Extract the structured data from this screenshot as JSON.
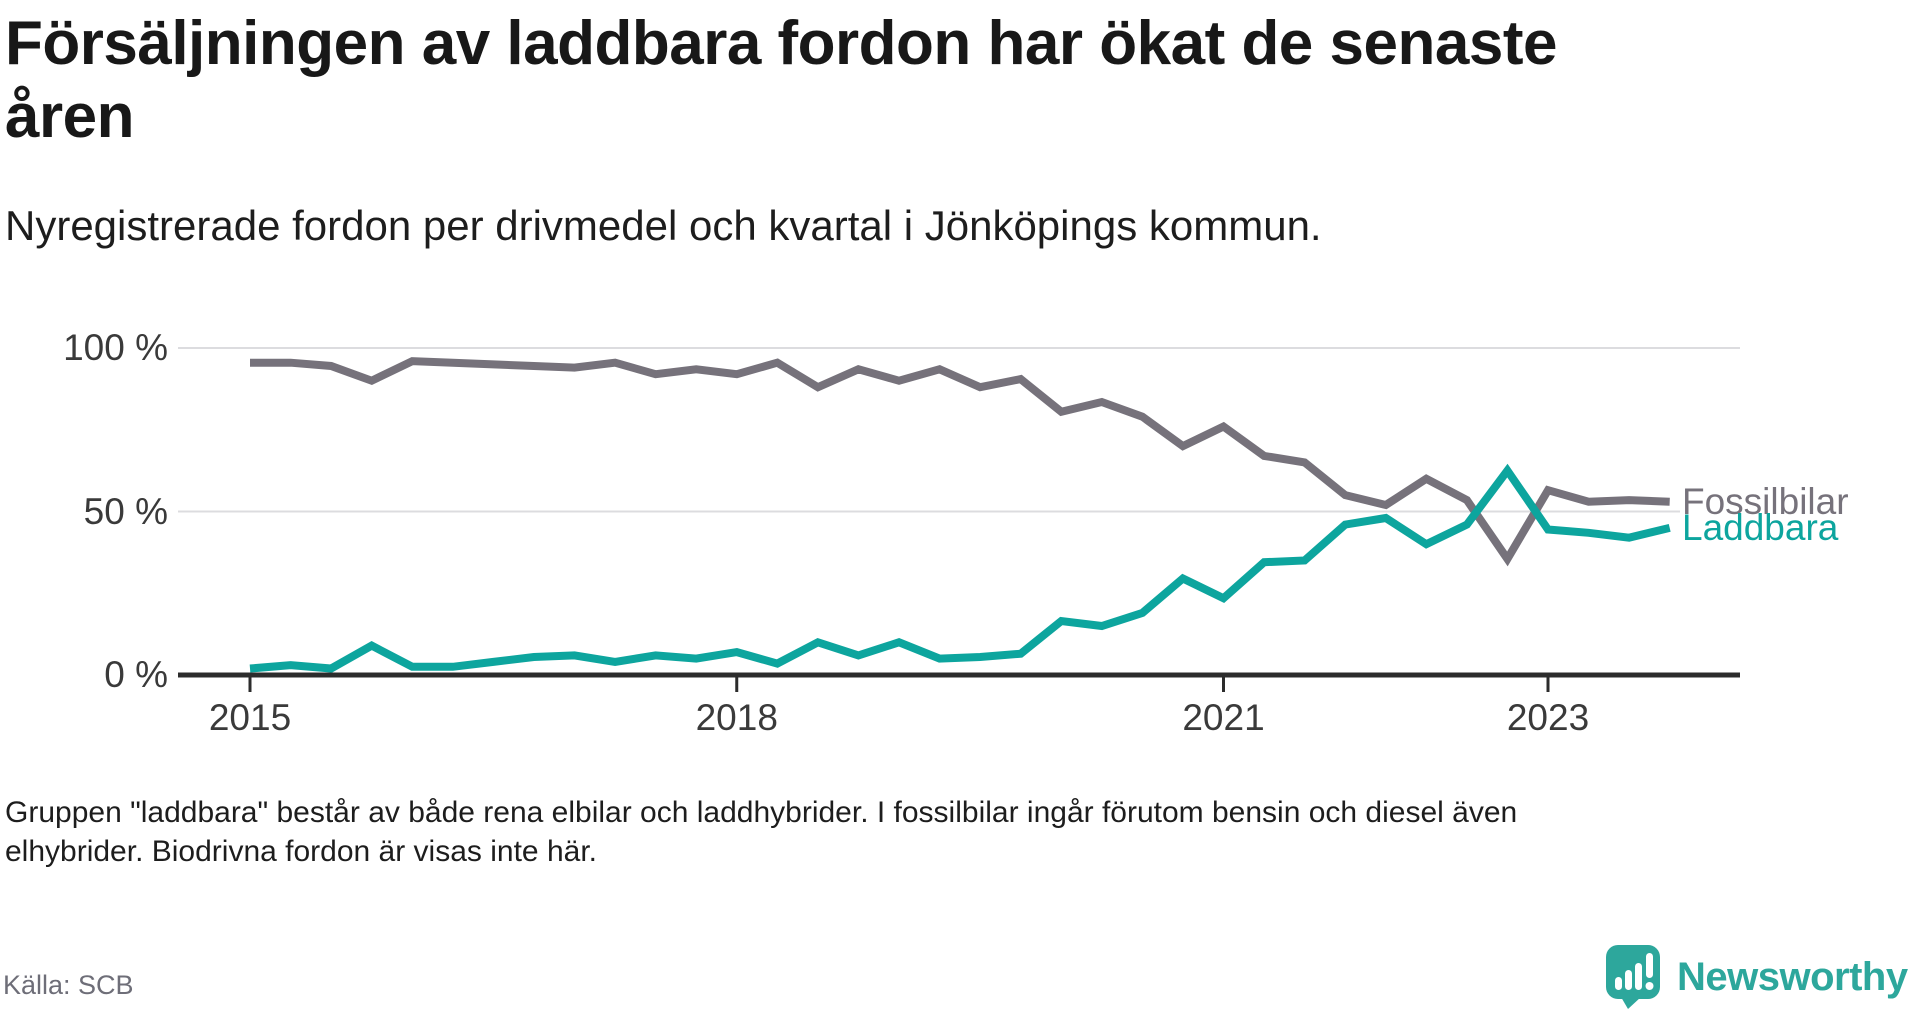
{
  "title_lines": [
    "Försäljningen av laddbara fordon har ökat de senaste",
    "åren"
  ],
  "title_full": "Försäljningen av laddbara fordon har ökat de senaste åren",
  "subtitle": "Nyregistrerade fordon per drivmedel och kvartal i Jönköpings kommun.",
  "footer": {
    "line1": "Gruppen \"laddbara\" består av både rena elbilar och laddhybrider. I fossilbilar ingår förutom bensin och diesel även",
    "line2": "elhybrider. Biodrivna fordon är visas inte här."
  },
  "source": "Källa: SCB",
  "branding": {
    "logo_text": "Newsworthy",
    "logo_color": "#2da79c",
    "logo_icon": "speech-bubble-bar-chart-icon"
  },
  "colors": {
    "fossil_line": "#76727B",
    "laddbara_line": "#0DA59E",
    "gridline": "#dcdcdf",
    "axis": "#2c2c2c",
    "tick_text": "#3a3a3a"
  },
  "chart_data": {
    "type": "line",
    "frequency": "quarterly",
    "x_start": "2015-Q1",
    "x_end": "2023-Q4",
    "ylim": [
      0,
      100
    ],
    "grid": "horizontal",
    "legend_position": "right-of-line-end",
    "yticks": [
      "100 %",
      "50 %",
      "0 %"
    ],
    "ytick_values": [
      100,
      50,
      0
    ],
    "xticks": [
      {
        "label": "2015",
        "quarter_index": 0
      },
      {
        "label": "2018",
        "quarter_index": 12
      },
      {
        "label": "2021",
        "quarter_index": 24
      },
      {
        "label": "2023",
        "quarter_index": 32
      }
    ],
    "categories": [
      "2015-Q1",
      "2015-Q2",
      "2015-Q3",
      "2015-Q4",
      "2016-Q1",
      "2016-Q2",
      "2016-Q3",
      "2016-Q4",
      "2017-Q1",
      "2017-Q2",
      "2017-Q3",
      "2017-Q4",
      "2018-Q1",
      "2018-Q2",
      "2018-Q3",
      "2018-Q4",
      "2019-Q1",
      "2019-Q2",
      "2019-Q3",
      "2019-Q4",
      "2020-Q1",
      "2020-Q2",
      "2020-Q3",
      "2020-Q4",
      "2021-Q1",
      "2021-Q2",
      "2021-Q3",
      "2021-Q4",
      "2022-Q1",
      "2022-Q2",
      "2022-Q3",
      "2022-Q4",
      "2023-Q1",
      "2023-Q2",
      "2023-Q3",
      "2023-Q4"
    ],
    "series": [
      {
        "name": "Fossilbilar",
        "color": "#76727B",
        "values": [
          95.5,
          95.5,
          94.5,
          90,
          96,
          95.5,
          95,
          94.5,
          94,
          95.5,
          92,
          93.5,
          92,
          95.5,
          88,
          93.5,
          90,
          93.5,
          88,
          90.5,
          80.5,
          83.5,
          79,
          70,
          76,
          67,
          65,
          55,
          52,
          60,
          53.5,
          35.5,
          56.5,
          53,
          53.5,
          53
        ]
      },
      {
        "name": "Laddbara",
        "color": "#0DA59E",
        "values": [
          2,
          3,
          2,
          9,
          2.5,
          2.5,
          4,
          5.5,
          6,
          4,
          6,
          5,
          7,
          3.5,
          10,
          6,
          10,
          5,
          5.5,
          6.5,
          16.5,
          15,
          19,
          29.5,
          23.5,
          34.5,
          35,
          46,
          48,
          40,
          46,
          62.5,
          44.5,
          43.5,
          42,
          45
        ]
      }
    ]
  }
}
